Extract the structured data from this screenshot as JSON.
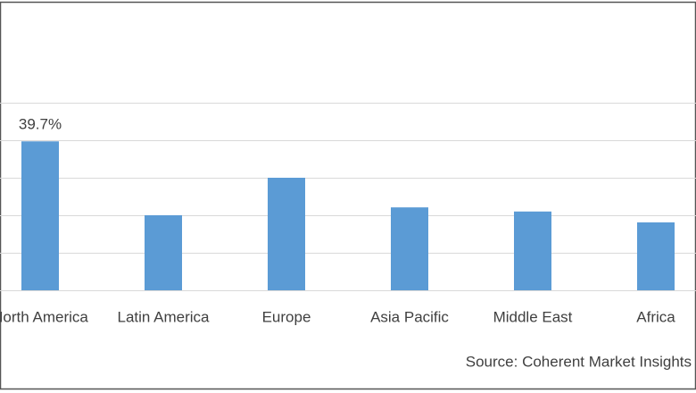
{
  "chart_data": {
    "type": "bar",
    "categories": [
      "North America",
      "Latin America",
      "Europe",
      "Asia Pacific",
      "Middle East",
      "Africa"
    ],
    "values": [
      39.7,
      20.0,
      30.0,
      22.1,
      21.0,
      18.1
    ],
    "value_labels": [
      "39.7%",
      null,
      null,
      null,
      null,
      null
    ],
    "color": "#5b9bd5",
    "ylim": [
      0,
      50
    ],
    "yticks": [
      0,
      10,
      20,
      30,
      40,
      50
    ],
    "grid": true,
    "source": "Source: Coherent Market Insights"
  }
}
